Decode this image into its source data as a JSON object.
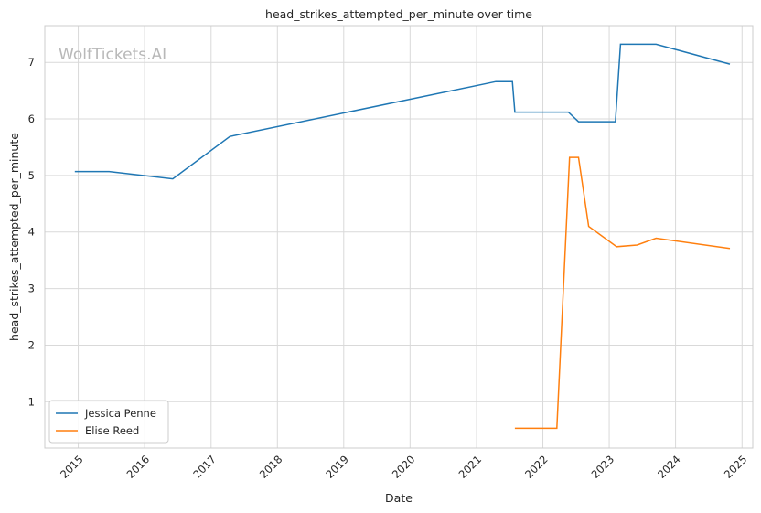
{
  "chart_data": {
    "type": "line",
    "title": "head_strikes_attempted_per_minute over time",
    "xlabel": "Date",
    "ylabel": "head_strikes_attempted_per_minute",
    "watermark": "WolfTickets.AI",
    "x_ticks": [
      "2015",
      "2016",
      "2017",
      "2018",
      "2019",
      "2020",
      "2021",
      "2022",
      "2023",
      "2024",
      "2025"
    ],
    "y_ticks": [
      "1",
      "2",
      "3",
      "4",
      "5",
      "6",
      "7"
    ],
    "xlim": [
      "2014-07-01",
      "2025-03-01"
    ],
    "ylim": [
      0.18,
      7.65
    ],
    "grid": true,
    "legend_position": "lower-left",
    "series": [
      {
        "name": "Jessica Penne",
        "color": "#1f77b4",
        "points": [
          [
            "2014-12-13",
            5.07
          ],
          [
            "2015-06-20",
            5.07
          ],
          [
            "2016-06-04",
            4.94
          ],
          [
            "2017-04-15",
            5.69
          ],
          [
            "2021-04-17",
            6.66
          ],
          [
            "2021-07-17",
            6.66
          ],
          [
            "2021-07-31",
            6.12
          ],
          [
            "2022-05-21",
            6.12
          ],
          [
            "2022-07-16",
            5.95
          ],
          [
            "2023-02-04",
            5.95
          ],
          [
            "2023-03-04",
            7.32
          ],
          [
            "2023-09-16",
            7.32
          ],
          [
            "2024-10-26",
            6.97
          ]
        ]
      },
      {
        "name": "Elise Reed",
        "color": "#ff7f0e",
        "points": [
          [
            "2021-07-31",
            0.53
          ],
          [
            "2022-03-19",
            0.53
          ],
          [
            "2022-05-28",
            5.32
          ],
          [
            "2022-07-16",
            5.32
          ],
          [
            "2022-09-10",
            4.1
          ],
          [
            "2023-02-11",
            3.74
          ],
          [
            "2023-06-03",
            3.77
          ],
          [
            "2023-09-16",
            3.89
          ],
          [
            "2024-10-26",
            3.71
          ]
        ]
      }
    ]
  }
}
